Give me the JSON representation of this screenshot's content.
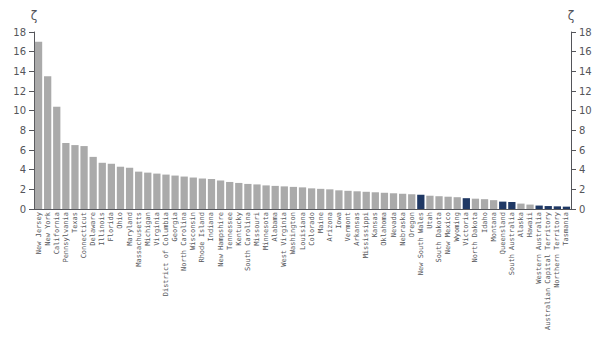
{
  "chart_data": {
    "type": "bar",
    "categories": [
      "New Jersey",
      "New York",
      "California",
      "Pennsylvania",
      "Texas",
      "Connecticut",
      "Delaware",
      "Illinois",
      "Florida",
      "Ohio",
      "Maryland",
      "Massachusetts",
      "Michigan",
      "Virginia",
      "District of Columbia",
      "Georgia",
      "North Carolina",
      "Wisconsin",
      "Rhode Island",
      "Indiana",
      "New Hampshire",
      "Tennessee",
      "Kentucky",
      "South Carolina",
      "Missouri",
      "Minnesota",
      "Alabama",
      "West Virginia",
      "Washington",
      "Louisiana",
      "Colorado",
      "Maine",
      "Arizona",
      "Iowa",
      "Vermont",
      "Arkansas",
      "Mississippi",
      "Kansas",
      "Oklahoma",
      "Nevada",
      "Nebraska",
      "Oregon",
      "New South Wales",
      "Utah",
      "South Dakota",
      "New Mexico",
      "Wyoming",
      "Victoria",
      "North Dakota",
      "Idaho",
      "Montana",
      "Queensland",
      "South Australia",
      "Alaska",
      "Hawaii",
      "Western Australia",
      "Australian Capital Territory",
      "Northern Territory",
      "Tasmania"
    ],
    "values": [
      17.0,
      13.5,
      10.4,
      6.7,
      6.5,
      6.4,
      5.3,
      4.7,
      4.6,
      4.3,
      4.2,
      3.8,
      3.7,
      3.6,
      3.5,
      3.4,
      3.3,
      3.2,
      3.1,
      3.05,
      2.9,
      2.75,
      2.65,
      2.55,
      2.5,
      2.4,
      2.35,
      2.3,
      2.25,
      2.2,
      2.1,
      2.05,
      2.0,
      1.9,
      1.85,
      1.8,
      1.75,
      1.7,
      1.65,
      1.6,
      1.55,
      1.5,
      1.45,
      1.35,
      1.3,
      1.25,
      1.2,
      1.1,
      1.05,
      1.0,
      0.9,
      0.75,
      0.7,
      0.55,
      0.45,
      0.35,
      0.3,
      0.27,
      0.24
    ],
    "colors": [
      "#aaaaaa",
      "#aaaaaa",
      "#aaaaaa",
      "#aaaaaa",
      "#aaaaaa",
      "#aaaaaa",
      "#aaaaaa",
      "#aaaaaa",
      "#aaaaaa",
      "#aaaaaa",
      "#aaaaaa",
      "#aaaaaa",
      "#aaaaaa",
      "#aaaaaa",
      "#aaaaaa",
      "#aaaaaa",
      "#aaaaaa",
      "#aaaaaa",
      "#aaaaaa",
      "#aaaaaa",
      "#aaaaaa",
      "#aaaaaa",
      "#aaaaaa",
      "#aaaaaa",
      "#aaaaaa",
      "#aaaaaa",
      "#aaaaaa",
      "#aaaaaa",
      "#aaaaaa",
      "#aaaaaa",
      "#aaaaaa",
      "#aaaaaa",
      "#aaaaaa",
      "#aaaaaa",
      "#aaaaaa",
      "#aaaaaa",
      "#aaaaaa",
      "#aaaaaa",
      "#aaaaaa",
      "#aaaaaa",
      "#aaaaaa",
      "#aaaaaa",
      "#1f3864",
      "#aaaaaa",
      "#aaaaaa",
      "#aaaaaa",
      "#aaaaaa",
      "#1f3864",
      "#aaaaaa",
      "#aaaaaa",
      "#aaaaaa",
      "#1f3864",
      "#1f3864",
      "#aaaaaa",
      "#aaaaaa",
      "#1f3864",
      "#1f3864",
      "#1f3864",
      "#1f3864"
    ],
    "ylabel": "ζ",
    "y2label": "ζ",
    "ylim": [
      0,
      18
    ],
    "yticks": [
      0,
      2,
      4,
      6,
      8,
      10,
      12,
      14,
      16,
      18
    ],
    "y2lim": [
      0,
      18
    ],
    "y2ticks": [
      0,
      2,
      4,
      6,
      8,
      10,
      12,
      14,
      16,
      18
    ],
    "grid": false
  }
}
